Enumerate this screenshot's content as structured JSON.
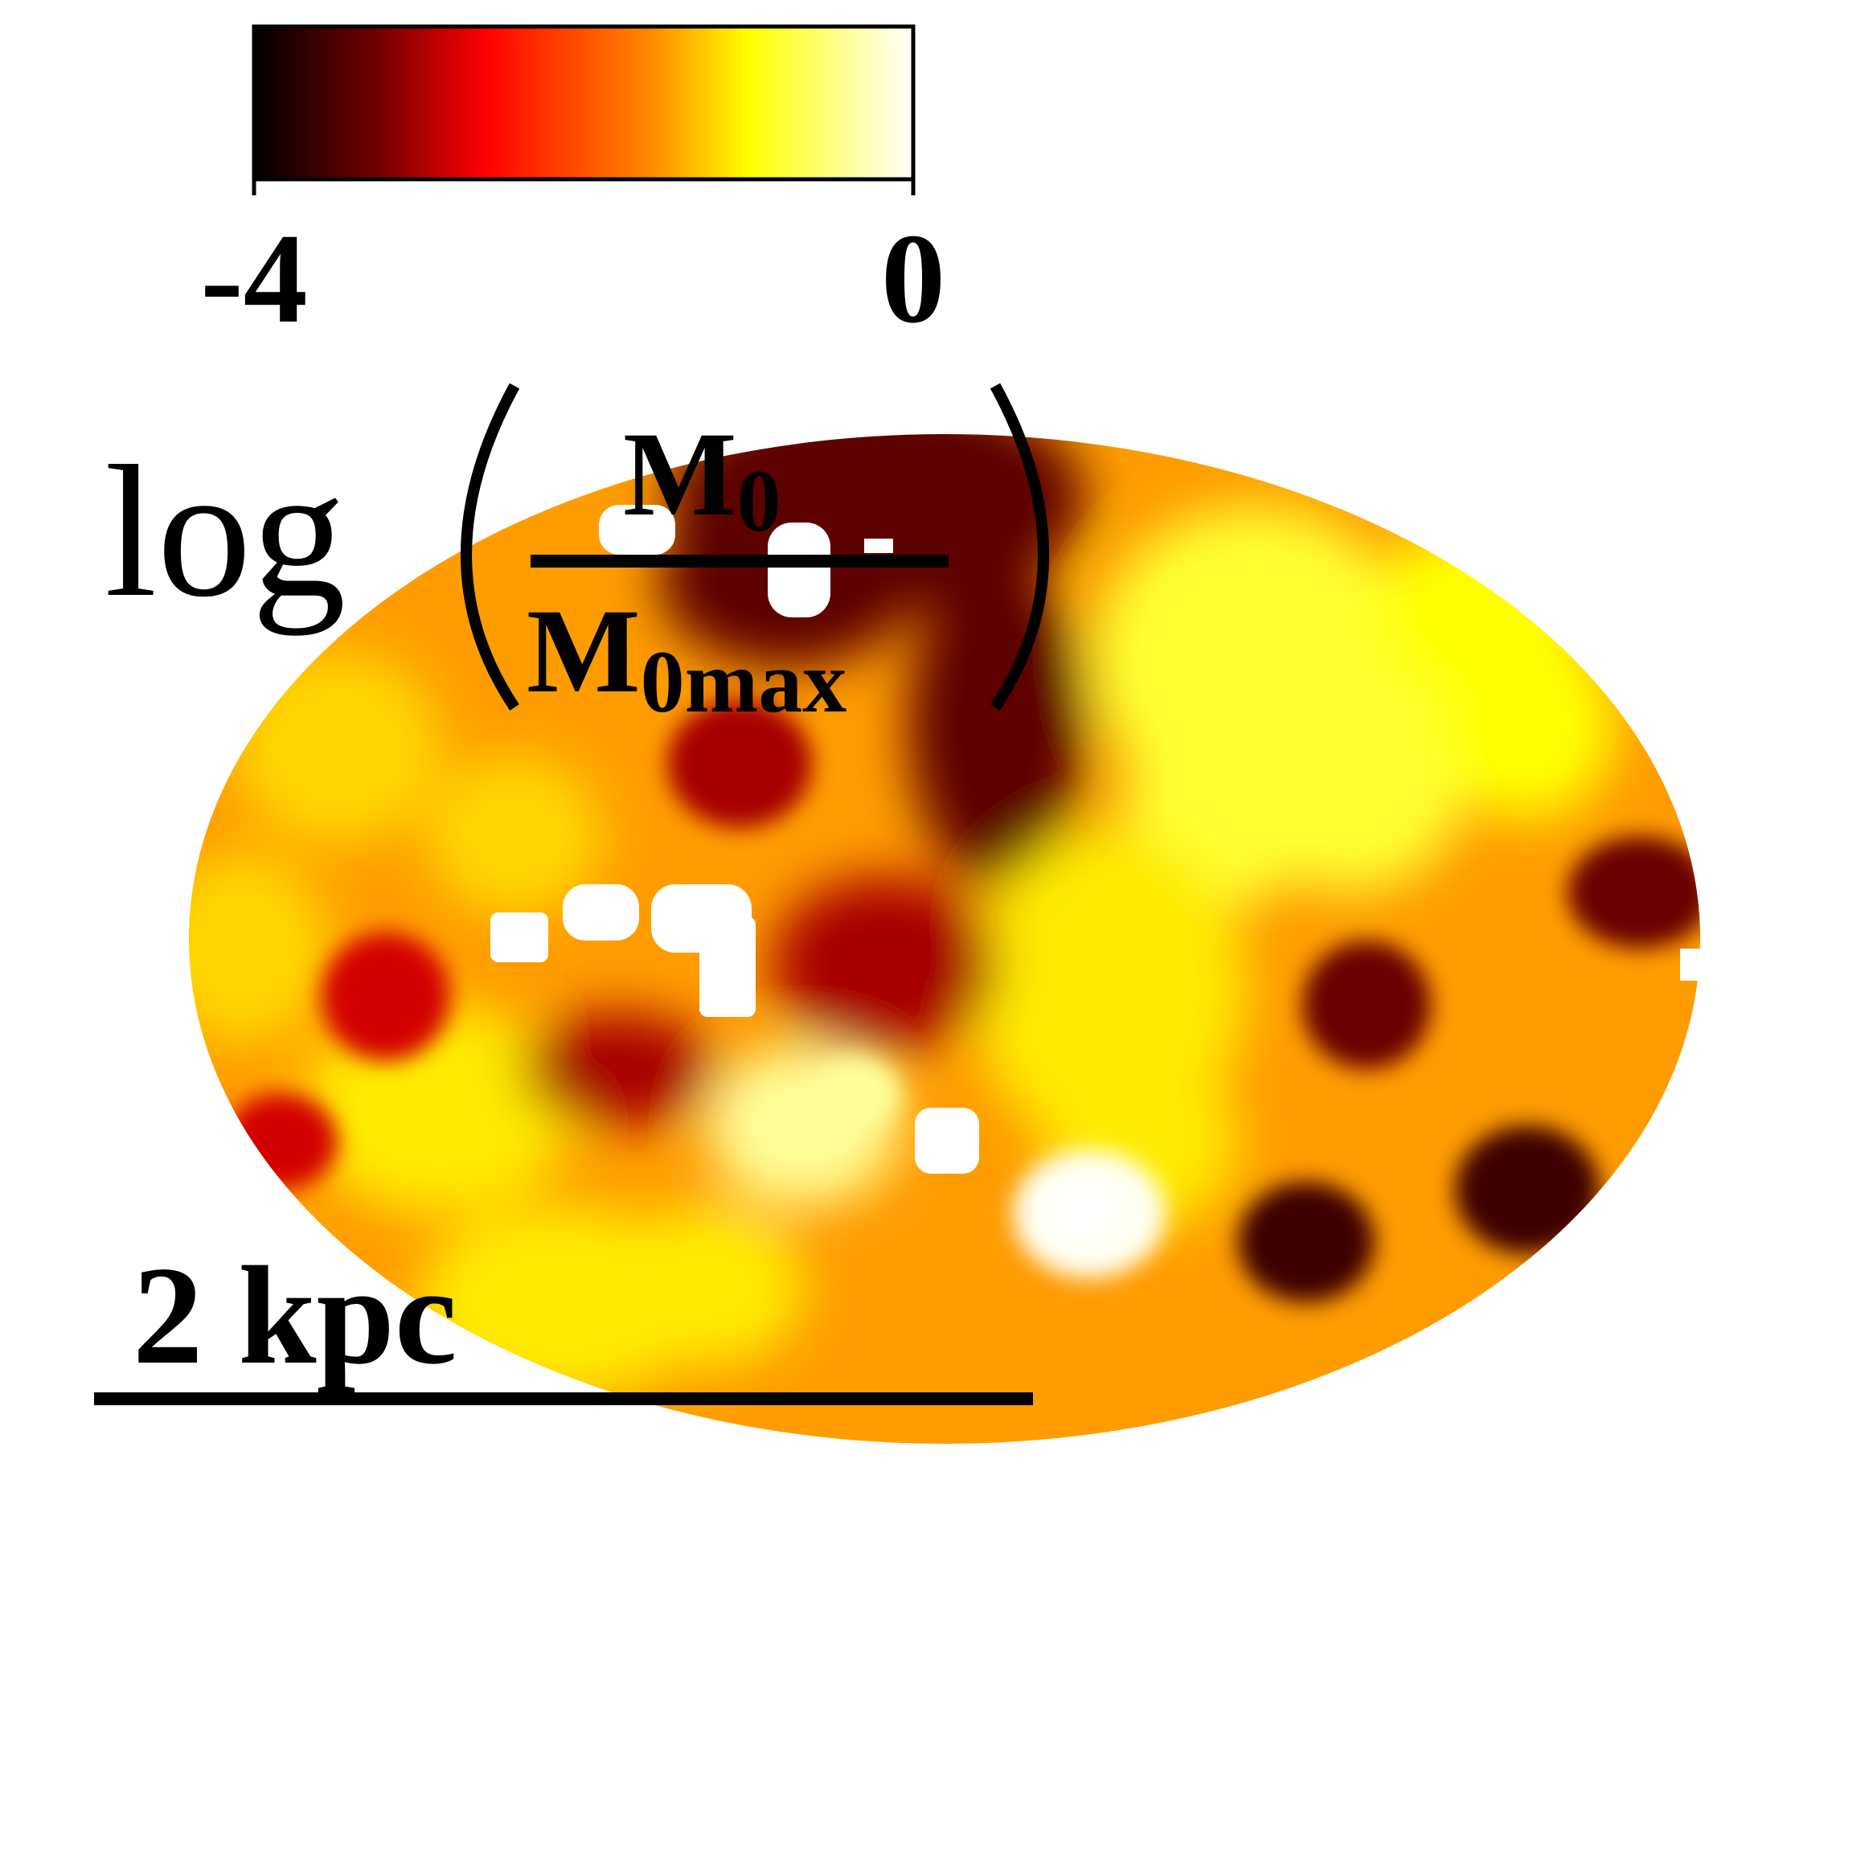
{
  "chart_data": {
    "type": "heatmap",
    "description_quantity": "log(M0 / M0max)",
    "colormap": [
      "#000000",
      "#7a0000",
      "#ff0000",
      "#ff8800",
      "#ffff00",
      "#ffffff"
    ],
    "colorbar": {
      "min": -4,
      "max": 0,
      "tick_labels": [
        "-4",
        "0"
      ]
    },
    "colorbar_label": {
      "prefix": "log",
      "numerator": "M",
      "numerator_sub": "0",
      "denominator": "M",
      "denominator_sub": "0max"
    },
    "scale_bar": {
      "label": "2 kpc",
      "length_kpc": 2
    },
    "map": {
      "background_value": -1.5,
      "features": [
        {
          "region": "north-central",
          "value": -3.4
        },
        {
          "region": "north-east",
          "value": -0.8
        },
        {
          "region": "east-upper",
          "value": -1.0
        },
        {
          "region": "central-right",
          "value": -1.1
        },
        {
          "region": "south-center bright knot",
          "value": -0.05
        },
        {
          "region": "center knot",
          "value": -0.4
        },
        {
          "region": "south-west",
          "value": -1.1
        },
        {
          "region": "west",
          "value": -1.2
        },
        {
          "region": "center dark",
          "value": -3.0
        },
        {
          "region": "south-east dark",
          "value": -3.6
        },
        {
          "region": "east dark",
          "value": -3.3
        },
        {
          "region": "west dark",
          "value": -2.8
        }
      ]
    }
  }
}
